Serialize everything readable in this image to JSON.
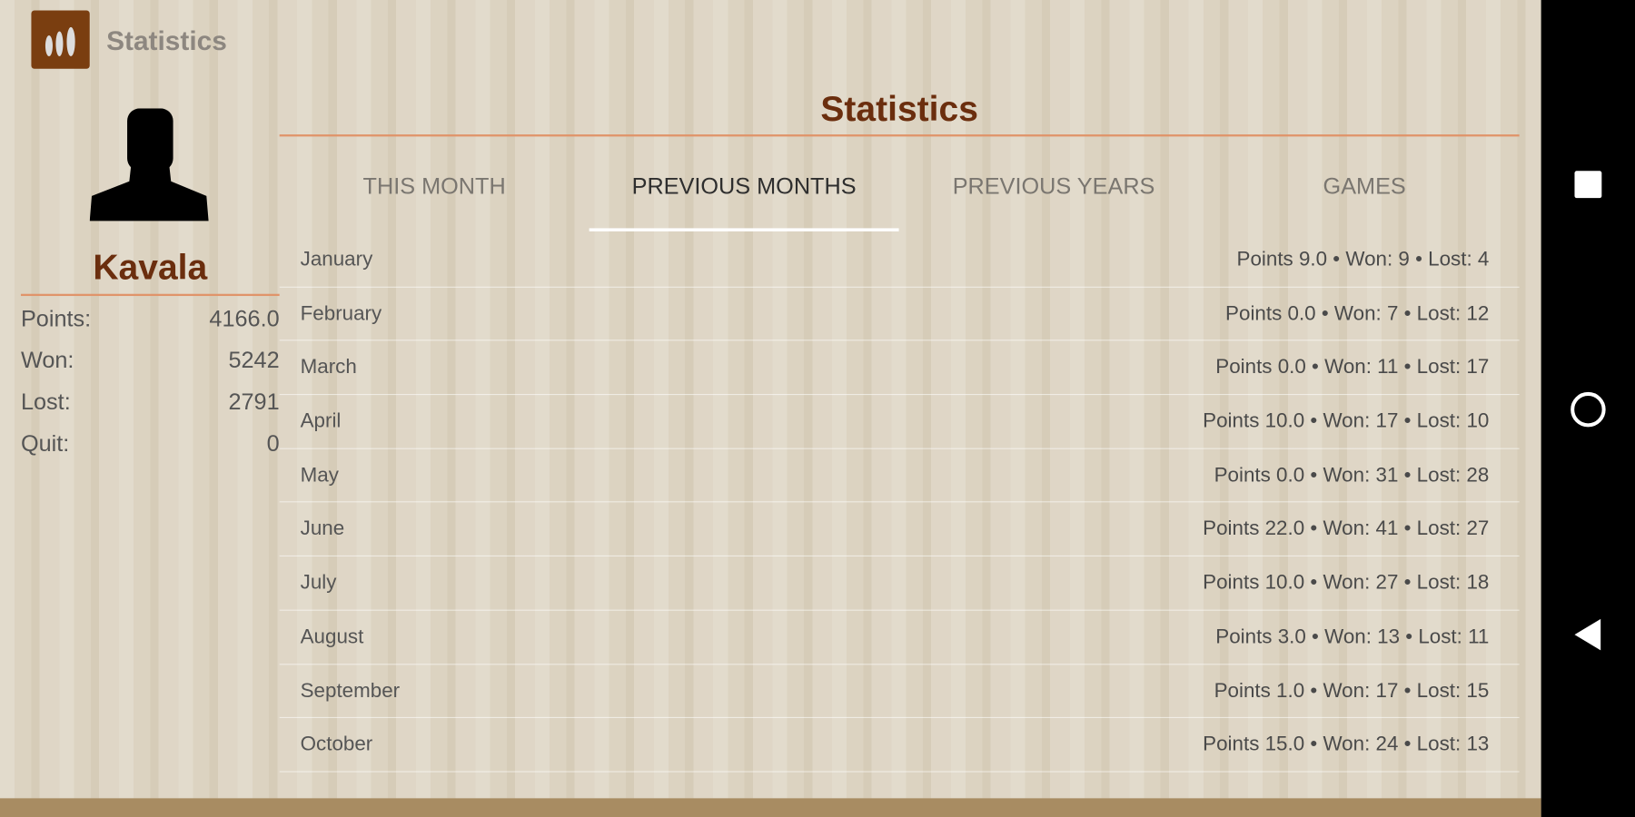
{
  "app": {
    "title": "Statistics",
    "logo_icon": "figures-icon"
  },
  "profile": {
    "name": "Kavala",
    "stats": [
      {
        "label": "Points:",
        "value": "4166.0"
      },
      {
        "label": "Won:",
        "value": "5242"
      },
      {
        "label": "Lost:",
        "value": "2791"
      },
      {
        "label": "Quit:",
        "value": "0"
      }
    ]
  },
  "main": {
    "title": "Statistics",
    "tabs": [
      {
        "label": "THIS MONTH"
      },
      {
        "label": "PREVIOUS MONTHS",
        "active": true
      },
      {
        "label": "PREVIOUS YEARS"
      },
      {
        "label": "GAMES"
      }
    ],
    "rows": [
      {
        "month": "January",
        "summary": "Points 9.0 • Won: 9 • Lost: 4"
      },
      {
        "month": "February",
        "summary": "Points 0.0 • Won: 7 • Lost: 12"
      },
      {
        "month": "March",
        "summary": "Points 0.0 • Won: 11 • Lost: 17"
      },
      {
        "month": "April",
        "summary": "Points 10.0 • Won: 17 • Lost: 10"
      },
      {
        "month": "May",
        "summary": "Points 0.0 • Won: 31 • Lost: 28"
      },
      {
        "month": "June",
        "summary": "Points 22.0 • Won: 41 • Lost: 27"
      },
      {
        "month": "July",
        "summary": "Points 10.0 • Won: 27 • Lost: 18"
      },
      {
        "month": "August",
        "summary": "Points 3.0 • Won: 13 • Lost: 11"
      },
      {
        "month": "September",
        "summary": "Points 1.0 • Won: 17 • Lost: 15"
      },
      {
        "month": "October",
        "summary": "Points 15.0 • Won: 24 • Lost: 13"
      }
    ]
  },
  "colors": {
    "accent": "#6b2e0e",
    "divider": "#e0946a",
    "logo": "#7a3e10"
  },
  "system_nav": [
    "recents-square-icon",
    "home-circle-icon",
    "back-triangle-icon"
  ]
}
